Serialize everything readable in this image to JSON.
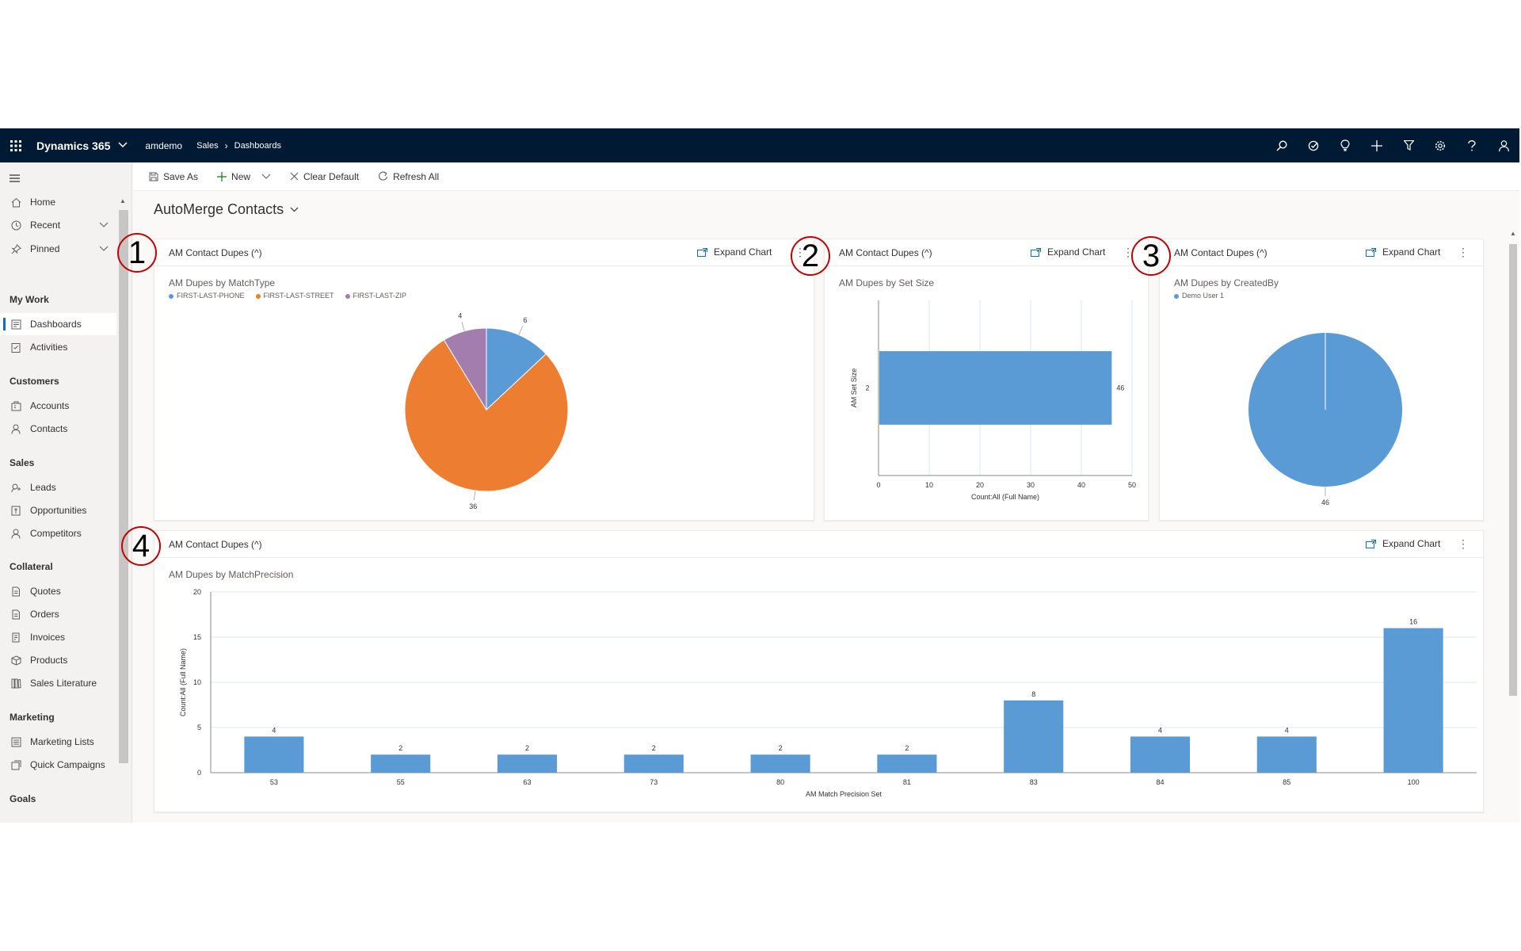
{
  "topbar": {
    "app_name": "Dynamics 365",
    "env_name": "amdemo",
    "breadcrumb": [
      "Sales",
      "Dashboards"
    ]
  },
  "sidebar": {
    "items": [
      {
        "label": "Home",
        "icon": "home-icon"
      },
      {
        "label": "Recent",
        "icon": "clock-icon"
      },
      {
        "label": "Pinned",
        "icon": "pin-icon"
      }
    ],
    "groups": [
      {
        "title": "My Work",
        "items": [
          "Dashboards",
          "Activities"
        ]
      },
      {
        "title": "Customers",
        "items": [
          "Accounts",
          "Contacts"
        ]
      },
      {
        "title": "Sales",
        "items": [
          "Leads",
          "Opportunities",
          "Competitors"
        ]
      },
      {
        "title": "Collateral",
        "items": [
          "Quotes",
          "Orders",
          "Invoices",
          "Products",
          "Sales Literature"
        ]
      },
      {
        "title": "Marketing",
        "items": [
          "Marketing Lists",
          "Quick Campaigns"
        ]
      },
      {
        "title": "Goals",
        "items": []
      }
    ]
  },
  "commands": {
    "save_as": "Save As",
    "new": "New",
    "clear_default": "Clear Default",
    "refresh_all": "Refresh All"
  },
  "dashboard": {
    "title": "AutoMerge Contacts"
  },
  "cards": [
    {
      "title": "AM Contact Dupes (^)",
      "expand": "Expand Chart",
      "chart_title": "AM Dupes by MatchType",
      "badge": "1"
    },
    {
      "title": "AM Contact Dupes (^)",
      "expand": "Expand Chart",
      "chart_title": "AM Dupes by Set Size",
      "badge": "2"
    },
    {
      "title": "AM Contact Dupes (^)",
      "expand": "Expand Chart",
      "chart_title": "AM Dupes by CreatedBy",
      "badge": "3"
    },
    {
      "title": "AM Contact Dupes (^)",
      "expand": "Expand Chart",
      "chart_title": "AM Dupes by MatchPrecision",
      "badge": "4"
    }
  ],
  "colors": {
    "blue": "#5b9bd5",
    "orange": "#ed7d31",
    "purple": "#a37dad",
    "nav_bg": "#001a33"
  },
  "chart_data": [
    {
      "type": "pie",
      "title": "AM Dupes by MatchType",
      "legend_position": "top-left",
      "slices": [
        {
          "name": "FIRST-LAST-PHONE",
          "value": 6,
          "color": "#5b9bd5"
        },
        {
          "name": "FIRST-LAST-STREET",
          "value": 36,
          "color": "#ed7d31"
        },
        {
          "name": "FIRST-LAST-ZIP",
          "value": 4,
          "color": "#a37dad"
        }
      ]
    },
    {
      "type": "bar",
      "orientation": "horizontal",
      "title": "AM Dupes by Set Size",
      "categories": [
        "2"
      ],
      "values": [
        46
      ],
      "xlabel": "Count:All (Full Name)",
      "ylabel": "AM Set Size",
      "xlim": [
        0,
        50
      ],
      "xticks": [
        0,
        10,
        20,
        30,
        40,
        50
      ],
      "grid": true
    },
    {
      "type": "pie",
      "title": "AM Dupes by CreatedBy",
      "legend_position": "top-left",
      "slices": [
        {
          "name": "Demo User 1",
          "value": 46,
          "color": "#5b9bd5"
        }
      ]
    },
    {
      "type": "bar",
      "title": "AM Dupes by MatchPrecision",
      "categories": [
        "53",
        "55",
        "63",
        "73",
        "80",
        "81",
        "83",
        "84",
        "85",
        "100"
      ],
      "values": [
        4,
        2,
        2,
        2,
        2,
        2,
        8,
        4,
        4,
        16
      ],
      "xlabel": "AM Match Precision Set",
      "ylabel": "Count:All (Full Name)",
      "ylim": [
        0,
        20
      ],
      "yticks": [
        0,
        5,
        10,
        15,
        20
      ],
      "grid": true
    }
  ]
}
